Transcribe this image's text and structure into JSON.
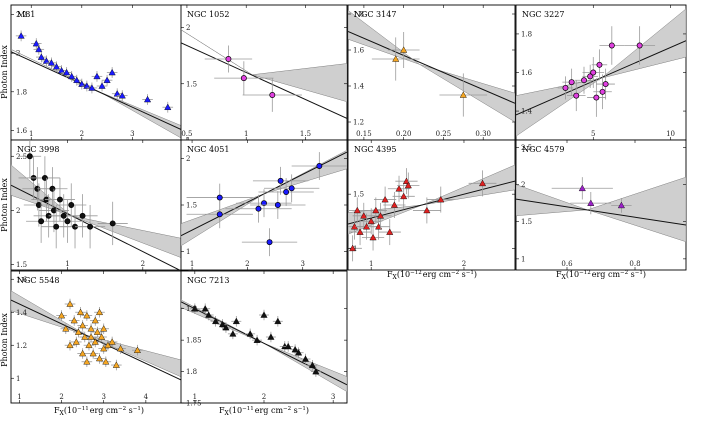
{
  "figure": {
    "ylabel": "Photon Index",
    "xlabel": "F_X(10^-11 erg cm^-2 s^-1)",
    "xlabel_row2": "F_X(10^-12 erg cm^-2 s^-1)",
    "xlabel_parts": {
      "f": "F",
      "sub": "X",
      "open": "(10",
      "exp11": "−11",
      "exp12": "−12",
      "mid": "erg cm",
      "exp2": "−2",
      "s": " s",
      "exp1": "−1",
      "close": ")"
    }
  },
  "chart_data": [
    {
      "type": "scatter",
      "name": "M81",
      "xlim": [
        0.6,
        4.1
      ],
      "ylim": [
        1.55,
        2.25
      ],
      "xticks": [
        1,
        2,
        3,
        4
      ],
      "yticks": [
        1.6,
        1.8,
        2.0,
        2.2
      ],
      "fit": {
        "slope": -0.12,
        "intercept": 2.08
      },
      "band": [
        [
          0.6,
          2.02,
          2.02
        ],
        [
          2.35,
          1.8,
          1.8
        ],
        [
          4.1,
          1.54,
          1.61
        ]
      ],
      "marker": "triangle",
      "color": "#1a1aff",
      "points": [
        [
          0.8,
          2.09
        ],
        [
          1.1,
          2.05
        ],
        [
          1.15,
          2.02
        ],
        [
          1.2,
          1.98
        ],
        [
          1.3,
          1.96
        ],
        [
          1.4,
          1.95
        ],
        [
          1.5,
          1.93
        ],
        [
          1.6,
          1.91
        ],
        [
          1.7,
          1.9
        ],
        [
          1.8,
          1.88
        ],
        [
          1.9,
          1.86
        ],
        [
          2.0,
          1.84
        ],
        [
          2.1,
          1.83
        ],
        [
          2.2,
          1.82
        ],
        [
          2.3,
          1.88
        ],
        [
          2.4,
          1.83
        ],
        [
          2.5,
          1.86
        ],
        [
          2.6,
          1.9
        ],
        [
          2.7,
          1.79
        ],
        [
          2.8,
          1.78
        ],
        [
          3.3,
          1.76
        ],
        [
          3.7,
          1.72
        ]
      ]
    },
    {
      "type": "scatter",
      "name": "NGC 1052",
      "xlim": [
        0.45,
        1.85
      ],
      "ylim": [
        1.0,
        2.2
      ],
      "xticks": [
        0.5,
        1.0,
        1.5
      ],
      "yticks": [
        1.0,
        1.5,
        2.0
      ],
      "xtick_labels": [
        "0.5",
        "1",
        "1.5"
      ],
      "fit": {
        "slope": -0.48,
        "intercept": 2.08
      },
      "band": [
        [
          0.45,
          1.98,
          1.98
        ],
        [
          1.05,
          1.58,
          1.58
        ],
        [
          1.85,
          1.34,
          1.68
        ]
      ],
      "marker": "circle",
      "color": "#e040e0",
      "points": [
        [
          0.85,
          1.72,
          0.2,
          0.12
        ],
        [
          0.98,
          1.55,
          0.25,
          0.15
        ],
        [
          1.22,
          1.4,
          0.25,
          0.15
        ]
      ]
    },
    {
      "type": "scatter",
      "name": "NGC 3147",
      "xlim": [
        0.13,
        0.34
      ],
      "ylim": [
        1.1,
        1.85
      ],
      "xticks": [
        0.15,
        0.2,
        0.25,
        0.3
      ],
      "yticks": [
        1.2,
        1.4,
        1.6,
        1.8
      ],
      "xtick_labels": [
        "0.15",
        "0.20",
        "0.25",
        "0.30"
      ],
      "fit": {
        "slope": -1.9,
        "intercept": 1.95
      },
      "band": [
        [
          0.13,
          1.66,
          1.82
        ],
        [
          0.22,
          1.52,
          1.52
        ],
        [
          0.34,
          1.2,
          1.36
        ]
      ],
      "marker": "triangle",
      "color": "#f5a623",
      "points": [
        [
          0.19,
          1.55,
          0.03,
          0.12
        ],
        [
          0.2,
          1.6,
          0.02,
          0.1
        ],
        [
          0.275,
          1.35,
          0.03,
          0.12
        ]
      ]
    },
    {
      "type": "scatter",
      "name": "NGC 3227",
      "xlim": [
        0.0,
        11.0
      ],
      "ylim": [
        1.25,
        1.95
      ],
      "xticks": [
        5,
        10
      ],
      "yticks": [
        1.4,
        1.6,
        1.8
      ],
      "fit": {
        "slope": 0.035,
        "intercept": 1.38
      },
      "band": [
        [
          0.0,
          1.27,
          1.48
        ],
        [
          5.5,
          1.57,
          1.57
        ],
        [
          11.0,
          1.68,
          1.93
        ]
      ],
      "marker": "circle",
      "color": "#e040e0",
      "points": [
        [
          3.2,
          1.52,
          0.5,
          0.06
        ],
        [
          3.6,
          1.55,
          0.6,
          0.07
        ],
        [
          3.9,
          1.48,
          0.6,
          0.08
        ],
        [
          4.4,
          1.56,
          0.6,
          0.07
        ],
        [
          4.8,
          1.58,
          0.5,
          0.06
        ],
        [
          5.0,
          1.6,
          0.7,
          0.08
        ],
        [
          5.2,
          1.47,
          0.6,
          0.1
        ],
        [
          5.4,
          1.64,
          0.5,
          0.08
        ],
        [
          5.6,
          1.5,
          0.6,
          0.09
        ],
        [
          5.8,
          1.54,
          0.6,
          0.08
        ],
        [
          6.2,
          1.74,
          0.8,
          0.1
        ],
        [
          8.0,
          1.74,
          1.0,
          0.1
        ]
      ]
    },
    {
      "type": "scatter",
      "name": "NGC 3998",
      "xlim": [
        0.25,
        2.6
      ],
      "ylim": [
        1.45,
        2.65
      ],
      "xticks": [
        1,
        2
      ],
      "yticks": [
        1.5,
        2.0,
        2.5
      ],
      "fit": {
        "slope": -0.35,
        "intercept": 2.32
      },
      "band": [
        [
          0.25,
          2.14,
          2.42
        ],
        [
          1.05,
          1.95,
          1.95
        ],
        [
          2.6,
          1.54,
          1.73
        ]
      ],
      "marker": "circle",
      "color": "#111111",
      "points": [
        [
          0.5,
          2.5,
          0.15,
          0.2
        ],
        [
          0.55,
          2.3,
          0.2,
          0.2
        ],
        [
          0.6,
          2.2,
          0.2,
          0.2
        ],
        [
          0.62,
          2.05,
          0.2,
          0.2
        ],
        [
          0.65,
          1.9,
          0.2,
          0.2
        ],
        [
          0.7,
          2.3,
          0.2,
          0.2
        ],
        [
          0.72,
          2.1,
          0.2,
          0.2
        ],
        [
          0.75,
          1.95,
          0.2,
          0.2
        ],
        [
          0.8,
          2.2,
          0.2,
          0.2
        ],
        [
          0.82,
          2.0,
          0.2,
          0.2
        ],
        [
          0.85,
          1.85,
          0.2,
          0.2
        ],
        [
          0.9,
          2.1,
          0.2,
          0.2
        ],
        [
          0.95,
          1.95,
          0.2,
          0.2
        ],
        [
          1.0,
          1.9,
          0.2,
          0.2
        ],
        [
          1.05,
          2.05,
          0.2,
          0.2
        ],
        [
          1.1,
          1.85,
          0.2,
          0.2
        ],
        [
          1.2,
          1.95,
          0.2,
          0.2
        ],
        [
          1.3,
          1.85,
          0.2,
          0.2
        ],
        [
          1.6,
          1.88,
          0.2,
          0.2
        ]
      ]
    },
    {
      "type": "scatter",
      "name": "NGC 4051",
      "xlim": [
        0.8,
        3.8
      ],
      "ylim": [
        0.8,
        2.2
      ],
      "xticks": [
        1,
        2,
        3
      ],
      "yticks": [
        1.0,
        1.5,
        2.0
      ],
      "fit": {
        "slope": 0.3,
        "intercept": 0.93
      },
      "band": [
        [
          0.8,
          1.06,
          1.3
        ],
        [
          2.3,
          1.62,
          1.62
        ],
        [
          3.8,
          1.89,
          2.09
        ]
      ],
      "marker": "circle",
      "color": "#1a1aff",
      "points": [
        [
          1.5,
          1.58,
          0.6,
          0.15
        ],
        [
          1.5,
          1.4,
          0.6,
          0.15
        ],
        [
          2.2,
          1.46,
          0.6,
          0.15
        ],
        [
          2.3,
          1.52,
          0.5,
          0.15
        ],
        [
          2.4,
          1.1,
          0.5,
          0.15
        ],
        [
          2.55,
          1.5,
          0.5,
          0.15
        ],
        [
          2.6,
          1.76,
          0.5,
          0.15
        ],
        [
          2.7,
          1.64,
          0.5,
          0.15
        ],
        [
          2.8,
          1.68,
          0.5,
          0.15
        ],
        [
          3.3,
          1.92,
          0.5,
          0.15
        ]
      ]
    },
    {
      "type": "scatter",
      "name": "NGC 4395",
      "xlim": [
        0.75,
        2.55
      ],
      "ylim": [
        0.8,
        2.0
      ],
      "xticks": [
        1,
        2
      ],
      "yticks": [
        1.0,
        1.5
      ],
      "fit": {
        "slope": 0.22,
        "intercept": 1.06
      },
      "band": [
        [
          0.75,
          1.13,
          1.33
        ],
        [
          1.55,
          1.4,
          1.4
        ],
        [
          2.55,
          1.54,
          1.77
        ]
      ],
      "marker": "triangle",
      "color": "#e02020",
      "points": [
        [
          0.8,
          1.0,
          0.1,
          0.12
        ],
        [
          0.82,
          1.2,
          0.1,
          0.12
        ],
        [
          0.85,
          1.35,
          0.1,
          0.12
        ],
        [
          0.88,
          1.15,
          0.12,
          0.12
        ],
        [
          0.92,
          1.3,
          0.12,
          0.12
        ],
        [
          0.95,
          1.2,
          0.12,
          0.12
        ],
        [
          1.0,
          1.25,
          0.12,
          0.12
        ],
        [
          1.02,
          1.1,
          0.12,
          0.12
        ],
        [
          1.05,
          1.35,
          0.12,
          0.12
        ],
        [
          1.08,
          1.2,
          0.12,
          0.12
        ],
        [
          1.1,
          1.3,
          0.12,
          0.12
        ],
        [
          1.15,
          1.45,
          0.12,
          0.12
        ],
        [
          1.2,
          1.15,
          0.12,
          0.12
        ],
        [
          1.25,
          1.4,
          0.12,
          0.12
        ],
        [
          1.3,
          1.55,
          0.12,
          0.12
        ],
        [
          1.35,
          1.48,
          0.12,
          0.12
        ],
        [
          1.38,
          1.62,
          0.12,
          0.12
        ],
        [
          1.4,
          1.58,
          0.12,
          0.12
        ],
        [
          1.6,
          1.35,
          0.15,
          0.12
        ],
        [
          1.75,
          1.45,
          0.15,
          0.12
        ],
        [
          2.2,
          1.6,
          0.15,
          0.12
        ]
      ]
    },
    {
      "type": "scatter",
      "name": "NGC 4579",
      "xlim": [
        0.45,
        0.95
      ],
      "ylim": [
        0.85,
        2.6
      ],
      "xticks": [
        0.6,
        0.8
      ],
      "yticks": [
        1.0,
        1.5,
        2.0,
        2.5
      ],
      "fit": {
        "slope": -0.7,
        "intercept": 2.12
      },
      "band": [
        [
          0.45,
          1.58,
          2.0
        ],
        [
          0.66,
          1.66,
          1.66
        ],
        [
          0.95,
          1.23,
          2.1
        ]
      ],
      "marker": "triangle",
      "color": "#9b20c8",
      "points": [
        [
          0.645,
          1.95,
          0.09,
          0.15
        ],
        [
          0.67,
          1.75,
          0.06,
          0.15
        ],
        [
          0.76,
          1.72,
          0.03,
          0.1
        ]
      ]
    },
    {
      "type": "scatter",
      "name": "NGC 5548",
      "xlim": [
        0.8,
        5.0
      ],
      "ylim": [
        0.85,
        1.65
      ],
      "xticks": [
        1,
        2,
        3,
        4
      ],
      "yticks": [
        1.0,
        1.2,
        1.4,
        1.6
      ],
      "fit": {
        "slope": -0.12,
        "intercept": 1.57
      },
      "band": [
        [
          0.8,
          1.41,
          1.53
        ],
        [
          2.6,
          1.26,
          1.26
        ],
        [
          5.0,
          0.99,
          1.1
        ]
      ],
      "marker": "triangle",
      "color": "#f5a623",
      "points": [
        [
          2.0,
          1.38
        ],
        [
          2.1,
          1.3
        ],
        [
          2.2,
          1.45
        ],
        [
          2.2,
          1.2
        ],
        [
          2.3,
          1.35
        ],
        [
          2.35,
          1.22
        ],
        [
          2.4,
          1.28
        ],
        [
          2.45,
          1.4
        ],
        [
          2.5,
          1.15
        ],
        [
          2.5,
          1.32
        ],
        [
          2.55,
          1.25
        ],
        [
          2.6,
          1.38
        ],
        [
          2.6,
          1.1
        ],
        [
          2.65,
          1.2
        ],
        [
          2.7,
          1.3
        ],
        [
          2.7,
          1.25
        ],
        [
          2.75,
          1.15
        ],
        [
          2.8,
          1.35
        ],
        [
          2.8,
          1.22
        ],
        [
          2.85,
          1.28
        ],
        [
          2.9,
          1.12
        ],
        [
          2.9,
          1.4
        ],
        [
          2.95,
          1.25
        ],
        [
          3.0,
          1.18
        ],
        [
          3.0,
          1.3
        ],
        [
          3.05,
          1.1
        ],
        [
          3.1,
          1.2
        ],
        [
          3.2,
          1.22
        ],
        [
          3.3,
          1.08
        ],
        [
          3.4,
          1.18
        ],
        [
          3.8,
          1.17
        ]
      ]
    },
    {
      "type": "scatter",
      "name": "NGC 7213",
      "xlim": [
        0.8,
        3.2
      ],
      "ylim": [
        1.75,
        1.96
      ],
      "xticks": [
        1,
        2,
        3
      ],
      "yticks": [
        1.75,
        1.8,
        1.85,
        1.9
      ],
      "fit": {
        "slope": -0.055,
        "intercept": 1.955
      },
      "band": [
        [
          0.8,
          1.902,
          1.914
        ],
        [
          2.0,
          1.845,
          1.845
        ],
        [
          3.2,
          1.768,
          1.792
        ]
      ],
      "marker": "triangle",
      "color": "#111111",
      "points": [
        [
          1.0,
          1.9
        ],
        [
          1.15,
          1.9
        ],
        [
          1.2,
          1.89
        ],
        [
          1.3,
          1.88
        ],
        [
          1.4,
          1.875
        ],
        [
          1.45,
          1.87
        ],
        [
          1.55,
          1.86
        ],
        [
          1.6,
          1.88
        ],
        [
          1.8,
          1.86
        ],
        [
          1.9,
          1.85
        ],
        [
          2.0,
          1.89
        ],
        [
          2.1,
          1.855
        ],
        [
          2.2,
          1.88
        ],
        [
          2.3,
          1.84
        ],
        [
          2.35,
          1.84
        ],
        [
          2.45,
          1.835
        ],
        [
          2.5,
          1.83
        ],
        [
          2.6,
          1.82
        ],
        [
          2.7,
          1.81
        ],
        [
          2.75,
          1.8
        ]
      ]
    }
  ]
}
